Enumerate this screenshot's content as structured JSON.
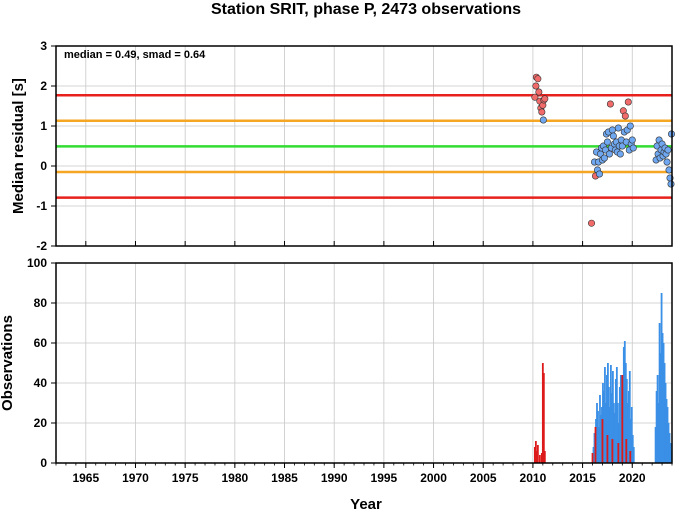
{
  "chart_data": [
    {
      "type": "scatter",
      "title": "Station SRIT, phase P, 2473 observations",
      "ylabel": "Median residual [s]",
      "xlim": [
        1962,
        2024
      ],
      "ylim": [
        -2,
        3
      ],
      "yticks": [
        -2,
        -1,
        0,
        1,
        2,
        3
      ],
      "grid": true,
      "annotation": "median = 0.49, smad = 0.64",
      "hlines": [
        {
          "value": 1.77,
          "color": "#e8201c"
        },
        {
          "value": 1.13,
          "color": "#f5a623"
        },
        {
          "value": 0.49,
          "color": "#33dd33"
        },
        {
          "value": -0.15,
          "color": "#f5a623"
        },
        {
          "value": -0.79,
          "color": "#e8201c"
        }
      ],
      "series": [
        {
          "color": "#f26b6b",
          "points": [
            [
              2010.2,
              1.72
            ],
            [
              2010.3,
              2.0
            ],
            [
              2010.35,
              2.22
            ],
            [
              2010.5,
              2.18
            ],
            [
              2010.6,
              1.85
            ],
            [
              2010.7,
              1.62
            ],
            [
              2010.8,
              1.45
            ],
            [
              2010.9,
              1.35
            ],
            [
              2011.0,
              1.52
            ],
            [
              2011.1,
              1.65
            ],
            [
              2011.2,
              1.68
            ],
            [
              2015.9,
              -1.43
            ],
            [
              2016.3,
              -0.25
            ],
            [
              2017.8,
              1.55
            ],
            [
              2019.1,
              1.38
            ],
            [
              2019.3,
              1.25
            ],
            [
              2019.6,
              1.6
            ]
          ]
        },
        {
          "color": "#6fa8f0",
          "points": [
            [
              2011.05,
              1.15
            ],
            [
              2016.2,
              0.1
            ],
            [
              2016.4,
              0.35
            ],
            [
              2016.5,
              -0.1
            ],
            [
              2016.6,
              0.1
            ],
            [
              2016.7,
              -0.2
            ],
            [
              2016.8,
              0.3
            ],
            [
              2016.9,
              0.45
            ],
            [
              2017.0,
              0.15
            ],
            [
              2017.1,
              0.5
            ],
            [
              2017.2,
              0.2
            ],
            [
              2017.3,
              0.4
            ],
            [
              2017.4,
              0.8
            ],
            [
              2017.5,
              0.6
            ],
            [
              2017.6,
              0.85
            ],
            [
              2017.7,
              0.3
            ],
            [
              2017.9,
              0.45
            ],
            [
              2018.0,
              0.9
            ],
            [
              2018.1,
              0.75
            ],
            [
              2018.2,
              0.55
            ],
            [
              2018.3,
              0.4
            ],
            [
              2018.4,
              0.6
            ],
            [
              2018.5,
              0.35
            ],
            [
              2018.6,
              0.95
            ],
            [
              2018.7,
              0.5
            ],
            [
              2018.8,
              0.3
            ],
            [
              2018.9,
              0.65
            ],
            [
              2019.0,
              0.5
            ],
            [
              2019.2,
              0.85
            ],
            [
              2019.4,
              0.6
            ],
            [
              2019.5,
              0.9
            ],
            [
              2019.7,
              0.4
            ],
            [
              2019.8,
              1.0
            ],
            [
              2019.9,
              0.55
            ],
            [
              2020.0,
              0.65
            ],
            [
              2020.1,
              0.45
            ],
            [
              2022.4,
              0.15
            ],
            [
              2022.5,
              0.5
            ],
            [
              2022.6,
              0.3
            ],
            [
              2022.7,
              0.65
            ],
            [
              2022.8,
              0.2
            ],
            [
              2022.9,
              0.4
            ],
            [
              2023.0,
              0.55
            ],
            [
              2023.1,
              0.25
            ],
            [
              2023.2,
              0.35
            ],
            [
              2023.3,
              0.45
            ],
            [
              2023.4,
              0.3
            ],
            [
              2023.5,
              0.1
            ],
            [
              2023.6,
              0.4
            ],
            [
              2023.7,
              -0.1
            ],
            [
              2023.8,
              -0.3
            ],
            [
              2023.9,
              -0.45
            ],
            [
              2023.95,
              0.8
            ]
          ]
        }
      ]
    },
    {
      "type": "bar",
      "ylabel": "Observations",
      "xlabel": "Year",
      "xlim": [
        1962,
        2024
      ],
      "ylim": [
        0,
        100
      ],
      "xticks": [
        1965,
        1970,
        1975,
        1980,
        1985,
        1990,
        1995,
        2000,
        2005,
        2010,
        2015,
        2020
      ],
      "yticks": [
        0,
        20,
        40,
        60,
        80,
        100
      ],
      "grid": true,
      "series": [
        {
          "color": "#dd1a1a",
          "bars": [
            [
              2010.2,
              8
            ],
            [
              2010.3,
              11
            ],
            [
              2010.4,
              6
            ],
            [
              2010.5,
              9
            ],
            [
              2010.7,
              4
            ],
            [
              2010.9,
              5
            ],
            [
              2011.0,
              50
            ],
            [
              2011.1,
              45
            ],
            [
              2011.2,
              6
            ],
            [
              2016.0,
              5
            ],
            [
              2016.3,
              18
            ],
            [
              2017.0,
              22
            ],
            [
              2017.5,
              14
            ],
            [
              2018.0,
              12
            ],
            [
              2018.6,
              10
            ],
            [
              2019.0,
              44
            ],
            [
              2019.4,
              12
            ],
            [
              2019.8,
              6
            ]
          ]
        },
        {
          "color": "#3a8fe6",
          "bars": [
            [
              2016.1,
              8
            ],
            [
              2016.2,
              15
            ],
            [
              2016.35,
              22
            ],
            [
              2016.45,
              30
            ],
            [
              2016.55,
              26
            ],
            [
              2016.65,
              18
            ],
            [
              2016.75,
              34
            ],
            [
              2016.85,
              24
            ],
            [
              2016.95,
              28
            ],
            [
              2017.05,
              40
            ],
            [
              2017.15,
              36
            ],
            [
              2017.25,
              48
            ],
            [
              2017.35,
              30
            ],
            [
              2017.45,
              44
            ],
            [
              2017.55,
              50
            ],
            [
              2017.65,
              38
            ],
            [
              2017.75,
              28
            ],
            [
              2017.85,
              49
            ],
            [
              2017.95,
              35
            ],
            [
              2018.05,
              46
            ],
            [
              2018.15,
              30
            ],
            [
              2018.25,
              25
            ],
            [
              2018.35,
              42
            ],
            [
              2018.45,
              48
            ],
            [
              2018.55,
              30
            ],
            [
              2018.65,
              20
            ],
            [
              2018.75,
              38
            ],
            [
              2018.85,
              44
            ],
            [
              2018.95,
              32
            ],
            [
              2019.05,
              40
            ],
            [
              2019.15,
              58
            ],
            [
              2019.25,
              61
            ],
            [
              2019.35,
              50
            ],
            [
              2019.45,
              42
            ],
            [
              2019.55,
              30
            ],
            [
              2019.65,
              36
            ],
            [
              2019.75,
              46
            ],
            [
              2019.85,
              22
            ],
            [
              2019.95,
              28
            ],
            [
              2020.05,
              14
            ],
            [
              2020.15,
              8
            ],
            [
              2022.35,
              18
            ],
            [
              2022.45,
              36
            ],
            [
              2022.55,
              44
            ],
            [
              2022.65,
              30
            ],
            [
              2022.75,
              70
            ],
            [
              2022.85,
              55
            ],
            [
              2022.95,
              85
            ],
            [
              2023.05,
              65
            ],
            [
              2023.15,
              60
            ],
            [
              2023.25,
              50
            ],
            [
              2023.35,
              40
            ],
            [
              2023.45,
              32
            ],
            [
              2023.55,
              28
            ],
            [
              2023.65,
              20
            ],
            [
              2023.75,
              15
            ],
            [
              2023.85,
              10
            ],
            [
              2023.95,
              6
            ]
          ]
        }
      ]
    }
  ]
}
